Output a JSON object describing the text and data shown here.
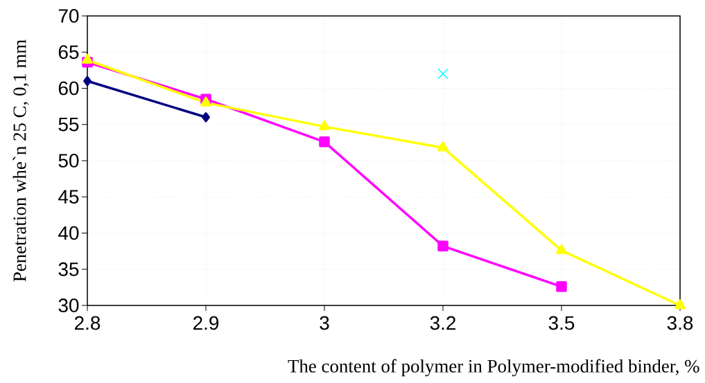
{
  "chart_data": {
    "type": "line",
    "xlabel": "The content of polymer in Polymer-modified binder, %",
    "ylabel": "Penetration whe`n 25 C, 0,1 mm",
    "categories": [
      "2.8",
      "2.9",
      "3",
      "3.2",
      "3.5",
      "3.8"
    ],
    "ylim": [
      30,
      70
    ],
    "yticks": [
      30,
      35,
      40,
      45,
      50,
      55,
      60,
      65,
      70
    ],
    "grid": true,
    "series": [
      {
        "color": "#000080",
        "marker": "diamond",
        "values": [
          61,
          56,
          null,
          null,
          null,
          null
        ]
      },
      {
        "color": "#ff00ff",
        "marker": "square",
        "values": [
          63.6,
          58.5,
          52.6,
          38.2,
          32.6,
          null
        ]
      },
      {
        "color": "#ffff00",
        "marker": "triangle",
        "values": [
          63.9,
          58.0,
          54.7,
          51.8,
          37.6,
          30
        ]
      },
      {
        "type": "scatter",
        "color": "#00ffff",
        "marker": "cross",
        "values": [
          null,
          null,
          null,
          62,
          null,
          null
        ]
      }
    ]
  }
}
